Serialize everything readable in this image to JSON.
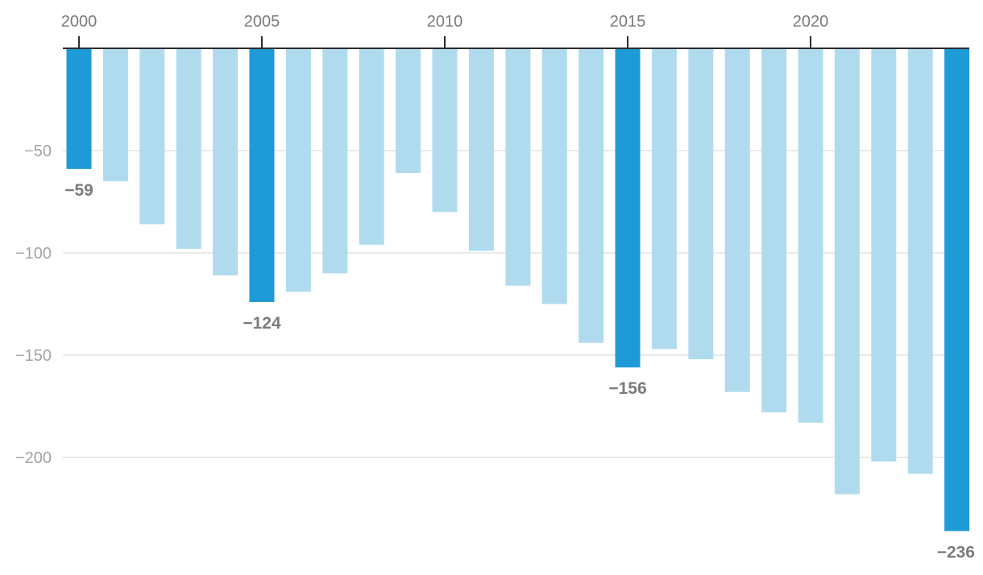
{
  "colors": {
    "highlight": "#1e9ad6",
    "bar": "#b0dbef",
    "axis": "#2b2b2b",
    "grid": "#e3e3e3"
  },
  "chart_data": {
    "type": "bar",
    "orientation": "vertical",
    "x_axis_position": "top",
    "title": "",
    "xlabel": "",
    "ylabel": "",
    "ylim": [
      -250,
      0
    ],
    "grid": true,
    "y_ticks": [
      -50,
      -100,
      -150,
      -200
    ],
    "y_tick_labels": [
      "−50",
      "−100",
      "−150",
      "−200"
    ],
    "x_ticks": [
      2000,
      2005,
      2010,
      2015,
      2020
    ],
    "x_tick_labels": [
      "2000",
      "2005",
      "2010",
      "2015",
      "2020"
    ],
    "categories": [
      2000,
      2001,
      2002,
      2003,
      2004,
      2005,
      2006,
      2007,
      2008,
      2009,
      2010,
      2011,
      2012,
      2013,
      2014,
      2015,
      2016,
      2017,
      2018,
      2019,
      2020,
      2021,
      2022,
      2023,
      2024
    ],
    "values": [
      -59,
      -65,
      -86,
      -98,
      -111,
      -124,
      -119,
      -110,
      -96,
      -61,
      -80,
      -99,
      -116,
      -125,
      -144,
      -156,
      -147,
      -152,
      -168,
      -178,
      -183,
      -218,
      -202,
      -208,
      -236
    ],
    "highlighted": [
      2000,
      2005,
      2015,
      2024
    ],
    "data_labels": [
      {
        "category": 2000,
        "text": "−59"
      },
      {
        "category": 2005,
        "text": "−124"
      },
      {
        "category": 2015,
        "text": "−156"
      },
      {
        "category": 2024,
        "text": "−236"
      }
    ]
  }
}
